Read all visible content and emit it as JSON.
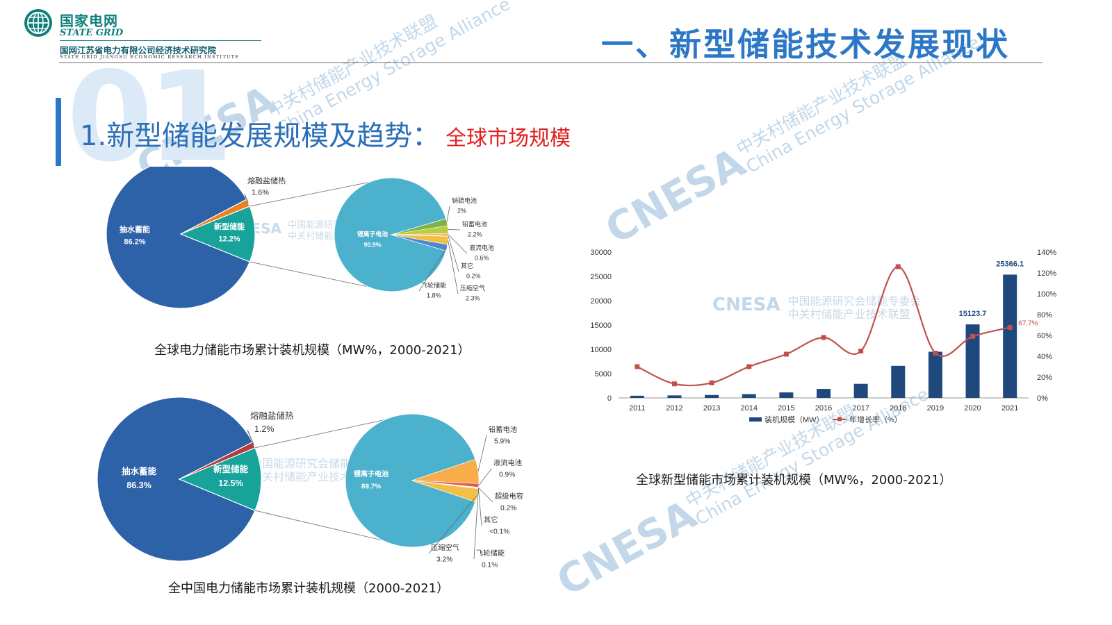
{
  "header": {
    "logo_cn": "国家电网",
    "logo_en": "STATE GRID",
    "institute_cn": "国网江苏省电力有限公司经济技术研究院",
    "institute_en": "STATE GRID JIANGSU ECONOMIC RESEARCH INSTITUTE",
    "page_title": "一、新型储能技术发展现状"
  },
  "section": {
    "number": "01",
    "heading": "1.新型储能发展规模及趋势：",
    "subheading": "全球市场规模"
  },
  "watermark": {
    "brand": "CNESA",
    "alliance_cn": "中关村储能产业技术联盟",
    "alliance_en": "China Energy Storage Alliance",
    "committee_cn": "中国能源研究会储能专委会"
  },
  "colors": {
    "pumped": "#2e62a8",
    "new_storage": "#17a39a",
    "molten": "#f07f1e",
    "china_molten": "#b53a3a",
    "lithium": "#4bb1cc",
    "bar": "#1f497d",
    "line": "#c0504d",
    "accent": "#2c78c6"
  },
  "chart_data": [
    {
      "type": "pie",
      "title": "全球电力储能市场累计装机规模（MW%，2000-2021）",
      "slices": [
        {
          "label": "抽水蓄能",
          "value": 86.2,
          "display": "86.2%"
        },
        {
          "label": "新型储能",
          "value": 12.2,
          "display": "12.2%"
        },
        {
          "label": "熔融盐储热",
          "value": 1.6,
          "display": "1.6%"
        }
      ],
      "breakdown": {
        "of": "新型储能",
        "slices": [
          {
            "label": "锂离子电池",
            "value": 90.9,
            "display": "90.9%"
          },
          {
            "label": "钠硫电池",
            "value": 2,
            "display": "2%"
          },
          {
            "label": "铅蓄电池",
            "value": 2.2,
            "display": "2.2%"
          },
          {
            "label": "液流电池",
            "value": 0.6,
            "display": "0.6%"
          },
          {
            "label": "其它",
            "value": 0.2,
            "display": "0.2%"
          },
          {
            "label": "压缩空气",
            "value": 2.3,
            "display": "2.3%"
          },
          {
            "label": "飞轮储能",
            "value": 1.8,
            "display": "1.8%"
          }
        ]
      }
    },
    {
      "type": "pie",
      "title": "全中国电力储能市场累计装机规模（2000-2021）",
      "slices": [
        {
          "label": "抽水蓄能",
          "value": 86.3,
          "display": "86.3%"
        },
        {
          "label": "新型储能",
          "value": 12.5,
          "display": "12.5%"
        },
        {
          "label": "熔融盐储热",
          "value": 1.2,
          "display": "1.2%"
        }
      ],
      "breakdown": {
        "of": "新型储能",
        "slices": [
          {
            "label": "锂离子电池",
            "value": 89.7,
            "display": "89.7%"
          },
          {
            "label": "铅蓄电池",
            "value": 5.9,
            "display": "5.9%"
          },
          {
            "label": "液流电池",
            "value": 0.9,
            "display": "0.9%"
          },
          {
            "label": "超级电容",
            "value": 0.2,
            "display": "0.2%"
          },
          {
            "label": "其它",
            "value": 0.05,
            "display": "<0.1%"
          },
          {
            "label": "飞轮储能",
            "value": 0.1,
            "display": "0.1%"
          },
          {
            "label": "压缩空气",
            "value": 3.2,
            "display": "3.2%"
          }
        ]
      }
    },
    {
      "type": "bar",
      "title": "全球新型储能市场累计装机规模（MW%，2000-2021）",
      "categories": [
        "2011",
        "2012",
        "2013",
        "2014",
        "2015",
        "2016",
        "2017",
        "2018",
        "2019",
        "2020",
        "2021"
      ],
      "series": [
        {
          "name": "装机规模（MW）",
          "type": "bar",
          "axis": "left",
          "values": [
            450,
            520,
            600,
            780,
            1130,
            1850,
            2900,
            6600,
            9500,
            15123.7,
            25366.1
          ]
        },
        {
          "name": "年增长率（%）",
          "type": "line",
          "axis": "right",
          "values": [
            30,
            13.5,
            14.5,
            30,
            42,
            58,
            45,
            126,
            43,
            59,
            67.7
          ]
        }
      ],
      "value_labels": [
        {
          "category": "2020",
          "text": "15123.7"
        },
        {
          "category": "2021",
          "text": "25366.1"
        },
        {
          "category": "2021",
          "series": "年增长率（%）",
          "text": "67.7%"
        }
      ],
      "ylim": [
        0,
        30000
      ],
      "yticks": [
        "0",
        "5000",
        "10000",
        "15000",
        "20000",
        "25000",
        "30000"
      ],
      "y2lim": [
        0,
        140
      ],
      "y2ticks": [
        "0%",
        "20%",
        "40%",
        "60%",
        "80%",
        "100%",
        "120%",
        "140%"
      ],
      "legend_position": "bottom-center",
      "grid": false
    }
  ]
}
